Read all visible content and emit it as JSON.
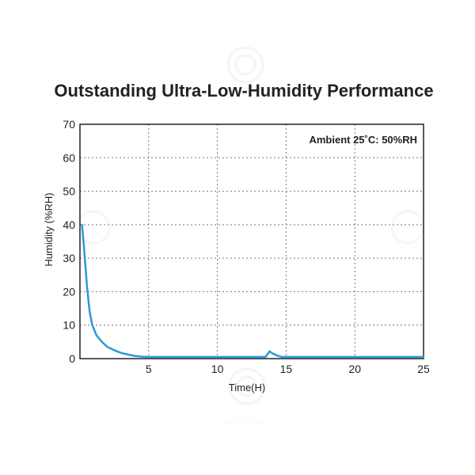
{
  "chart_data": {
    "type": "line",
    "title": "Outstanding Ultra-Low-Humidity Performance",
    "xlabel": "Time(H)",
    "ylabel": "Humidity (%RH)",
    "xlim": [
      0,
      25
    ],
    "ylim": [
      0,
      70
    ],
    "xticks": [
      5,
      10,
      15,
      20,
      25
    ],
    "yticks": [
      0,
      10,
      20,
      30,
      40,
      50,
      60,
      70
    ],
    "grid": true,
    "annotation": "Ambient 25˚C: 50%RH",
    "series": [
      {
        "color": "#2a9ad6",
        "x": [
          0.15,
          0.3,
          0.5,
          0.7,
          0.9,
          1.2,
          1.6,
          2.0,
          2.5,
          3.0,
          3.5,
          4.0,
          4.5,
          5.0,
          6.0,
          8.0,
          10.0,
          12.0,
          13.5,
          13.8,
          14.0,
          14.3,
          14.7,
          15.0,
          18.0,
          21.0,
          25.0
        ],
        "y": [
          40,
          33,
          22,
          14,
          10,
          7,
          5,
          3.5,
          2.5,
          1.7,
          1.2,
          0.8,
          0.6,
          0.5,
          0.5,
          0.5,
          0.5,
          0.5,
          0.5,
          2.2,
          1.6,
          1.0,
          0.5,
          0.5,
          0.5,
          0.5,
          0.5
        ]
      }
    ],
    "colors": {
      "series": "#2a9ad6",
      "grid": "#777777",
      "text": "#222222"
    }
  },
  "watermark": {
    "text": "TECOTEC"
  }
}
